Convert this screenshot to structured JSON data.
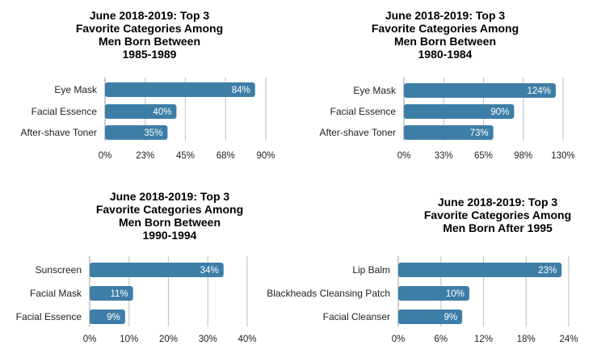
{
  "chart_data": [
    {
      "type": "bar",
      "orientation": "horizontal",
      "title": "June 2018-2019: Top 3\nFavorite Categories Among\nMen Born Between\n1985-1989",
      "categories": [
        "Eye Mask",
        "Facial Essence",
        "After-shave Toner"
      ],
      "values": [
        84,
        40,
        35
      ],
      "value_labels": [
        "84%",
        "40%",
        "35%"
      ],
      "xlim": [
        0,
        90
      ],
      "ticks": [
        0,
        22.5,
        45,
        67.5,
        90
      ],
      "tick_labels": [
        "0%",
        "23%",
        "45%",
        "68%",
        "90%"
      ],
      "grid": true
    },
    {
      "type": "bar",
      "orientation": "horizontal",
      "title": "June 2018-2019: Top 3\nFavorite Categories Among\nMen Born Between\n1980-1984",
      "categories": [
        "Eye Mask",
        "Facial Essence",
        "After-shave Toner"
      ],
      "values": [
        124,
        90,
        73
      ],
      "value_labels": [
        "124%",
        "90%",
        "73%"
      ],
      "xlim": [
        0,
        130
      ],
      "ticks": [
        0,
        32.5,
        65,
        97.5,
        130
      ],
      "tick_labels": [
        "0%",
        "33%",
        "65%",
        "98%",
        "130%"
      ],
      "grid": true
    },
    {
      "type": "bar",
      "orientation": "horizontal",
      "title": "June 2018-2019: Top 3\nFavorite Categories Among\nMen Born Between\n1990-1994",
      "categories": [
        "Sunscreen",
        "Facial  Mask",
        "Facial Essence"
      ],
      "values": [
        34,
        11,
        9
      ],
      "value_labels": [
        "34%",
        "11%",
        "9%"
      ],
      "xlim": [
        0,
        40
      ],
      "ticks": [
        0,
        10,
        20,
        30,
        40
      ],
      "tick_labels": [
        "0%",
        "10%",
        "20%",
        "30%",
        "40%"
      ],
      "grid": true
    },
    {
      "type": "bar",
      "orientation": "horizontal",
      "title": "June 2018-2019: Top 3\nFavorite Categories Among\nMen Born After 1995",
      "categories": [
        "Lip Balm",
        "Blackheads Cleansing Patch",
        "Facial Cleanser"
      ],
      "values": [
        23,
        10,
        9
      ],
      "value_labels": [
        "23%",
        "10%",
        "9%"
      ],
      "xlim": [
        0,
        24
      ],
      "ticks": [
        0,
        6,
        12,
        18,
        24
      ],
      "tick_labels": [
        "0%",
        "6%",
        "12%",
        "18%",
        "24%"
      ],
      "grid": true
    }
  ],
  "colors": {
    "bar": "#3d7ea6",
    "grid": "#c8c8c8",
    "bar_label": "#ffffff"
  }
}
